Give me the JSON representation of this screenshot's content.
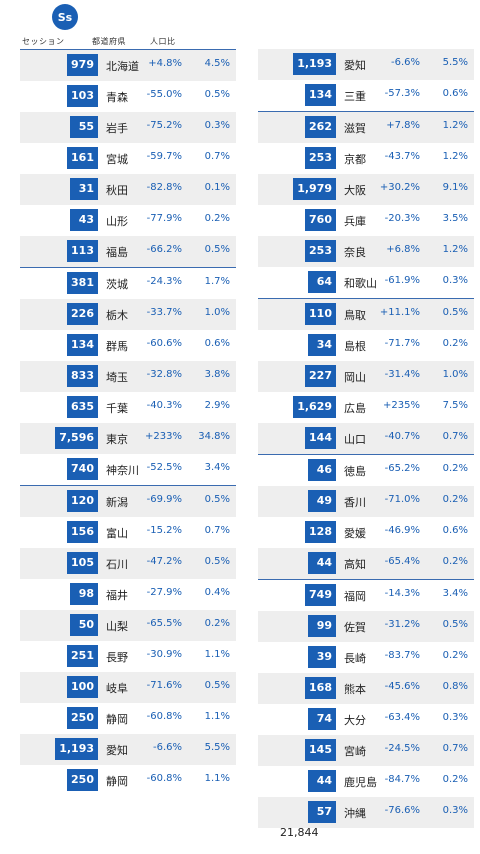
{
  "logo": "Ss",
  "headers": {
    "session": "セッション",
    "prefecture": "都道府県",
    "population": "人口比"
  },
  "left_rows": [
    {
      "count": "979",
      "pref": "北海道",
      "change": "+4.8%",
      "share": "4.5%",
      "shade": true,
      "sep": false
    },
    {
      "count": "103",
      "pref": "青森",
      "change": "-55.0%",
      "share": "0.5%",
      "shade": false,
      "sep": false
    },
    {
      "count": "55",
      "pref": "岩手",
      "change": "-75.2%",
      "share": "0.3%",
      "shade": true,
      "sep": false
    },
    {
      "count": "161",
      "pref": "宮城",
      "change": "-59.7%",
      "share": "0.7%",
      "shade": false,
      "sep": false
    },
    {
      "count": "31",
      "pref": "秋田",
      "change": "-82.8%",
      "share": "0.1%",
      "shade": true,
      "sep": false
    },
    {
      "count": "43",
      "pref": "山形",
      "change": "-77.9%",
      "share": "0.2%",
      "shade": false,
      "sep": false
    },
    {
      "count": "113",
      "pref": "福島",
      "change": "-66.2%",
      "share": "0.5%",
      "shade": true,
      "sep": false
    },
    {
      "count": "381",
      "pref": "茨城",
      "change": "-24.3%",
      "share": "1.7%",
      "shade": false,
      "sep": true
    },
    {
      "count": "226",
      "pref": "栃木",
      "change": "-33.7%",
      "share": "1.0%",
      "shade": true,
      "sep": false
    },
    {
      "count": "134",
      "pref": "群馬",
      "change": "-60.6%",
      "share": "0.6%",
      "shade": false,
      "sep": false
    },
    {
      "count": "833",
      "pref": "埼玉",
      "change": "-32.8%",
      "share": "3.8%",
      "shade": true,
      "sep": false
    },
    {
      "count": "635",
      "pref": "千葉",
      "change": "-40.3%",
      "share": "2.9%",
      "shade": false,
      "sep": false
    },
    {
      "count": "7,596",
      "pref": "東京",
      "change": "+233%",
      "share": "34.8%",
      "shade": true,
      "sep": false
    },
    {
      "count": "740",
      "pref": "神奈川",
      "change": "-52.5%",
      "share": "3.4%",
      "shade": false,
      "sep": false
    },
    {
      "count": "120",
      "pref": "新潟",
      "change": "-69.9%",
      "share": "0.5%",
      "shade": true,
      "sep": true
    },
    {
      "count": "156",
      "pref": "富山",
      "change": "-15.2%",
      "share": "0.7%",
      "shade": false,
      "sep": false
    },
    {
      "count": "105",
      "pref": "石川",
      "change": "-47.2%",
      "share": "0.5%",
      "shade": true,
      "sep": false
    },
    {
      "count": "98",
      "pref": "福井",
      "change": "-27.9%",
      "share": "0.4%",
      "shade": false,
      "sep": false
    },
    {
      "count": "50",
      "pref": "山梨",
      "change": "-65.5%",
      "share": "0.2%",
      "shade": true,
      "sep": false
    },
    {
      "count": "251",
      "pref": "長野",
      "change": "-30.9%",
      "share": "1.1%",
      "shade": false,
      "sep": false
    },
    {
      "count": "100",
      "pref": "岐阜",
      "change": "-71.6%",
      "share": "0.5%",
      "shade": true,
      "sep": false
    },
    {
      "count": "250",
      "pref": "静岡",
      "change": "-60.8%",
      "share": "1.1%",
      "shade": false,
      "sep": false
    },
    {
      "count": "1,193",
      "pref": "愛知",
      "change": "-6.6%",
      "share": "5.5%",
      "shade": true,
      "sep": false
    },
    {
      "count": "250",
      "pref": "静岡",
      "change": "-60.8%",
      "share": "1.1%",
      "shade": false,
      "sep": false
    }
  ],
  "right_rows": [
    {
      "count": "1,193",
      "pref": "愛知",
      "change": "-6.6%",
      "share": "5.5%",
      "shade": true,
      "sep": false
    },
    {
      "count": "134",
      "pref": "三重",
      "change": "-57.3%",
      "share": "0.6%",
      "shade": false,
      "sep": false
    },
    {
      "count": "262",
      "pref": "滋賀",
      "change": "+7.8%",
      "share": "1.2%",
      "shade": true,
      "sep": true
    },
    {
      "count": "253",
      "pref": "京都",
      "change": "-43.7%",
      "share": "1.2%",
      "shade": false,
      "sep": false
    },
    {
      "count": "1,979",
      "pref": "大阪",
      "change": "+30.2%",
      "share": "9.1%",
      "shade": true,
      "sep": false
    },
    {
      "count": "760",
      "pref": "兵庫",
      "change": "-20.3%",
      "share": "3.5%",
      "shade": false,
      "sep": false
    },
    {
      "count": "253",
      "pref": "奈良",
      "change": "+6.8%",
      "share": "1.2%",
      "shade": true,
      "sep": false
    },
    {
      "count": "64",
      "pref": "和歌山",
      "change": "-61.9%",
      "share": "0.3%",
      "shade": false,
      "sep": false
    },
    {
      "count": "110",
      "pref": "鳥取",
      "change": "+11.1%",
      "share": "0.5%",
      "shade": true,
      "sep": true
    },
    {
      "count": "34",
      "pref": "島根",
      "change": "-71.7%",
      "share": "0.2%",
      "shade": false,
      "sep": false
    },
    {
      "count": "227",
      "pref": "岡山",
      "change": "-31.4%",
      "share": "1.0%",
      "shade": true,
      "sep": false
    },
    {
      "count": "1,629",
      "pref": "広島",
      "change": "+235%",
      "share": "7.5%",
      "shade": false,
      "sep": false
    },
    {
      "count": "144",
      "pref": "山口",
      "change": "-40.7%",
      "share": "0.7%",
      "shade": true,
      "sep": false
    },
    {
      "count": "46",
      "pref": "徳島",
      "change": "-65.2%",
      "share": "0.2%",
      "shade": false,
      "sep": true
    },
    {
      "count": "49",
      "pref": "香川",
      "change": "-71.0%",
      "share": "0.2%",
      "shade": true,
      "sep": false
    },
    {
      "count": "128",
      "pref": "愛媛",
      "change": "-46.9%",
      "share": "0.6%",
      "shade": false,
      "sep": false
    },
    {
      "count": "44",
      "pref": "高知",
      "change": "-65.4%",
      "share": "0.2%",
      "shade": true,
      "sep": false
    },
    {
      "count": "749",
      "pref": "福岡",
      "change": "-14.3%",
      "share": "3.4%",
      "shade": false,
      "sep": true
    },
    {
      "count": "99",
      "pref": "佐賀",
      "change": "-31.2%",
      "share": "0.5%",
      "shade": true,
      "sep": false
    },
    {
      "count": "39",
      "pref": "長崎",
      "change": "-83.7%",
      "share": "0.2%",
      "shade": false,
      "sep": false
    },
    {
      "count": "168",
      "pref": "熊本",
      "change": "-45.6%",
      "share": "0.8%",
      "shade": true,
      "sep": false
    },
    {
      "count": "74",
      "pref": "大分",
      "change": "-63.4%",
      "share": "0.3%",
      "shade": false,
      "sep": false
    },
    {
      "count": "145",
      "pref": "宮崎",
      "change": "-24.5%",
      "share": "0.7%",
      "shade": true,
      "sep": false
    },
    {
      "count": "44",
      "pref": "鹿児島",
      "change": "-84.7%",
      "share": "0.2%",
      "shade": false,
      "sep": false
    },
    {
      "count": "57",
      "pref": "沖縄",
      "change": "-76.6%",
      "share": "0.3%",
      "shade": true,
      "sep": false
    }
  ],
  "total": "21,844",
  "colors": {
    "accent": "#1a5fb4",
    "shade": "#eeeeee",
    "text": "#222222"
  }
}
